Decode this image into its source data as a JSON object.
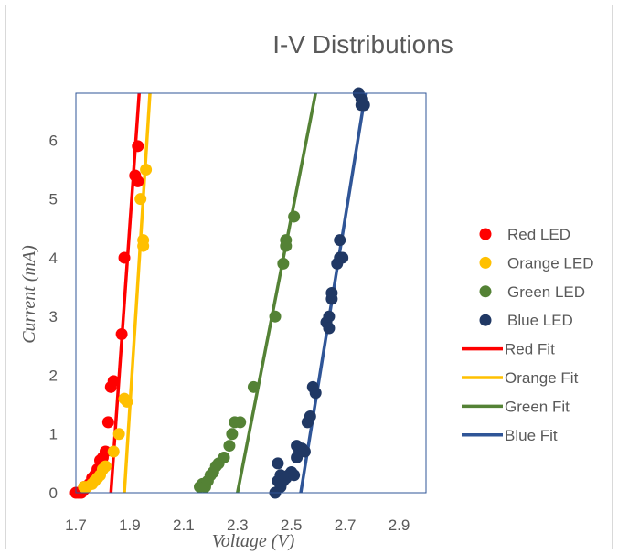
{
  "chart_data": {
    "type": "scatter",
    "title": "I-V Distributions",
    "xlabel": "Voltage (V)",
    "ylabel": "Current (mA)",
    "xlim": [
      1.7,
      3.0
    ],
    "ylim": [
      0,
      6.8
    ],
    "xticks": [
      1.7,
      1.9,
      2.1,
      2.3,
      2.5,
      2.7,
      2.9
    ],
    "xtick_labels": [
      "1.7",
      "1.9",
      "2.1",
      "2.3",
      "2.5",
      "2.7",
      "2.9"
    ],
    "yticks": [
      0,
      1,
      2,
      3,
      4,
      5,
      6
    ],
    "ytick_labels": [
      "0",
      "1",
      "2",
      "3",
      "4",
      "5",
      "6"
    ],
    "grid": false,
    "legend_position": "right",
    "series": [
      {
        "name": "Red LED",
        "kind": "points",
        "color": "#ff0000",
        "x": [
          1.7,
          1.71,
          1.72,
          1.73,
          1.73,
          1.74,
          1.75,
          1.76,
          1.77,
          1.78,
          1.79,
          1.8,
          1.81,
          1.82,
          1.83,
          1.84,
          1.87,
          1.88,
          1.92,
          1.93,
          1.93
        ],
        "y": [
          0.0,
          0.0,
          0.0,
          0.05,
          0.1,
          0.1,
          0.15,
          0.25,
          0.3,
          0.4,
          0.55,
          0.6,
          0.7,
          1.2,
          1.8,
          1.9,
          2.7,
          4.0,
          5.4,
          5.3,
          5.9
        ]
      },
      {
        "name": "Orange LED",
        "kind": "points",
        "color": "#ffc000",
        "x": [
          1.73,
          1.74,
          1.76,
          1.77,
          1.78,
          1.79,
          1.8,
          1.81,
          1.84,
          1.86,
          1.88,
          1.89,
          1.94,
          1.95,
          1.95,
          1.96
        ],
        "y": [
          0.1,
          0.1,
          0.15,
          0.2,
          0.25,
          0.3,
          0.4,
          0.45,
          0.7,
          1.0,
          1.6,
          1.55,
          5.0,
          4.2,
          4.3,
          5.5
        ]
      },
      {
        "name": "Green LED",
        "kind": "points",
        "color": "#548235",
        "x": [
          2.16,
          2.17,
          2.18,
          2.19,
          2.2,
          2.21,
          2.22,
          2.23,
          2.25,
          2.27,
          2.28,
          2.29,
          2.31,
          2.36,
          2.44,
          2.47,
          2.48,
          2.48,
          2.51
        ],
        "y": [
          0.1,
          0.15,
          0.1,
          0.2,
          0.3,
          0.35,
          0.45,
          0.5,
          0.6,
          0.8,
          1.0,
          1.2,
          1.2,
          1.8,
          3.0,
          3.9,
          4.2,
          4.3,
          4.7
        ]
      },
      {
        "name": "Blue LED",
        "kind": "points",
        "color": "#203864",
        "x": [
          2.44,
          2.45,
          2.45,
          2.46,
          2.46,
          2.47,
          2.48,
          2.49,
          2.5,
          2.51,
          2.52,
          2.52,
          2.53,
          2.54,
          2.55,
          2.56,
          2.57,
          2.58,
          2.59,
          2.63,
          2.64,
          2.64,
          2.65,
          2.65,
          2.67,
          2.68,
          2.68,
          2.69,
          2.75,
          2.76,
          2.76,
          2.77
        ],
        "y": [
          0.0,
          0.5,
          0.2,
          0.3,
          0.1,
          0.2,
          0.25,
          0.3,
          0.35,
          0.3,
          0.6,
          0.8,
          0.7,
          0.75,
          0.7,
          1.2,
          1.3,
          1.8,
          1.7,
          2.9,
          2.8,
          3.0,
          3.3,
          3.4,
          3.9,
          4.0,
          4.3,
          4.0,
          6.8,
          6.6,
          6.7,
          6.6
        ]
      },
      {
        "name": "Red Fit",
        "kind": "line",
        "color": "#ff0000",
        "x": [
          1.83,
          1.935
        ],
        "y": [
          0,
          6.8
        ]
      },
      {
        "name": "Orange Fit",
        "kind": "line",
        "color": "#ffc000",
        "x": [
          1.88,
          1.975
        ],
        "y": [
          0,
          6.8
        ]
      },
      {
        "name": "Green Fit",
        "kind": "line",
        "color": "#548235",
        "x": [
          2.3,
          2.59
        ],
        "y": [
          0,
          6.8
        ]
      },
      {
        "name": "Blue Fit",
        "kind": "line",
        "color": "#2f5597",
        "x": [
          2.535,
          2.775
        ],
        "y": [
          0,
          6.8
        ]
      }
    ]
  }
}
